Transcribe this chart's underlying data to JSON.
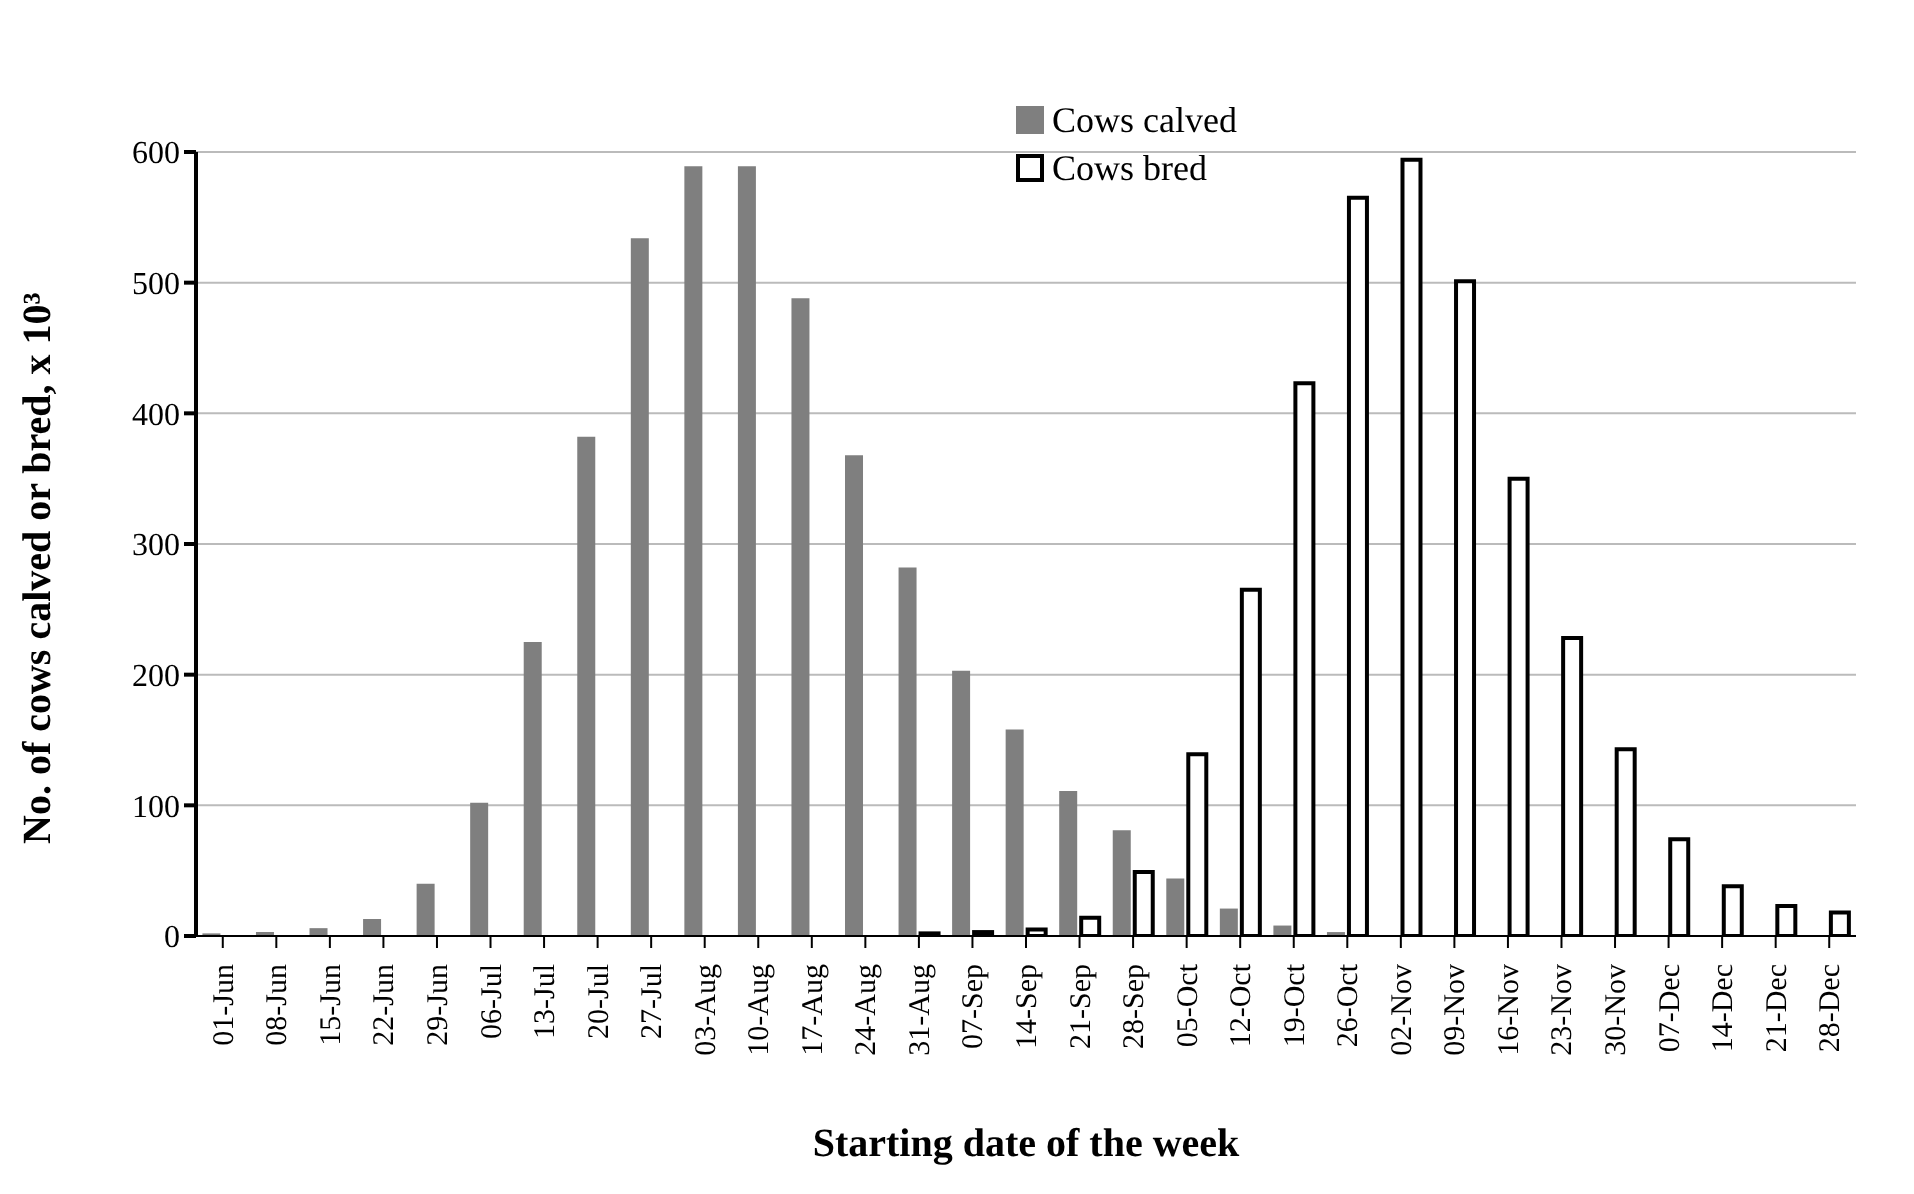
{
  "chart_data": {
    "type": "bar",
    "xlabel": "Starting date of the week",
    "ylabel": "No. of cows calved or bred, x 10³",
    "categories": [
      "01-Jun",
      "08-Jun",
      "15-Jun",
      "22-Jun",
      "29-Jun",
      "06-Jul",
      "13-Jul",
      "20-Jul",
      "27-Jul",
      "03-Aug",
      "10-Aug",
      "17-Aug",
      "24-Aug",
      "31-Aug",
      "07-Sep",
      "14-Sep",
      "21-Sep",
      "28-Sep",
      "05-Oct",
      "12-Oct",
      "19-Oct",
      "26-Oct",
      "02-Nov",
      "09-Nov",
      "16-Nov",
      "23-Nov",
      "30-Nov",
      "07-Dec",
      "14-Dec",
      "21-Dec",
      "28-Dec"
    ],
    "series": [
      {
        "name": "Cows calved",
        "color": "#7f7f7f",
        "values": [
          2,
          3,
          6,
          13,
          40,
          102,
          225,
          382,
          534,
          589,
          589,
          488,
          368,
          282,
          203,
          158,
          111,
          81,
          44,
          21,
          8,
          3,
          0,
          0,
          0,
          0,
          0,
          0,
          0,
          0,
          0
        ]
      },
      {
        "name": "Cows bred",
        "color": "#ffffff",
        "values": [
          0,
          0,
          0,
          0,
          0,
          0,
          0,
          0,
          0,
          0,
          0,
          0,
          0,
          2,
          3,
          5,
          14,
          49,
          139,
          265,
          423,
          565,
          594,
          501,
          350,
          228,
          143,
          74,
          38,
          23,
          18
        ]
      }
    ],
    "ylim": [
      0,
      600
    ],
    "yticks": [
      0,
      100,
      200,
      300,
      400,
      500,
      600
    ],
    "grid": "y",
    "legend": "top"
  }
}
